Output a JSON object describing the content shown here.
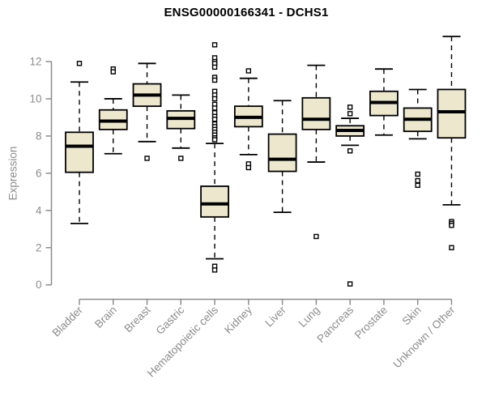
{
  "window": {
    "title": "ENSG00000166341 - DCHS1"
  },
  "colors": {
    "box_fill": "#EDE8CD",
    "box_stroke": "#000000",
    "median": "#000000",
    "outlier_fill": "#FFFFFF",
    "axis": "#8C8C8C",
    "tick_label": "#8C8C8C",
    "title": "#000000",
    "background": "#FFFFFF"
  },
  "chart_data": {
    "type": "boxplot",
    "title": "ENSG00000166341 - DCHS1",
    "xlabel": "",
    "ylabel": "Expression",
    "ylim": [
      0,
      13.5
    ],
    "yticks": [
      0,
      2,
      4,
      6,
      8,
      10,
      12
    ],
    "grid": false,
    "legend": "none",
    "categories": [
      "Bladder",
      "Brain",
      "Breast",
      "Gastric",
      "Hematopoietic cells",
      "Kidney",
      "Liver",
      "Lung",
      "Pancreas",
      "Prostate",
      "Skin",
      "Unknown / Other"
    ],
    "series": [
      {
        "name": "Bladder",
        "low": 3.3,
        "q1": 6.05,
        "median": 7.45,
        "q3": 8.2,
        "high": 10.9,
        "outliers": [
          11.9
        ]
      },
      {
        "name": "Brain",
        "low": 7.05,
        "q1": 8.35,
        "median": 8.8,
        "q3": 9.4,
        "high": 10.0,
        "outliers": [
          11.6,
          11.45
        ]
      },
      {
        "name": "Breast",
        "low": 7.7,
        "q1": 9.6,
        "median": 10.2,
        "q3": 10.8,
        "high": 11.9,
        "outliers": [
          6.8
        ]
      },
      {
        "name": "Gastric",
        "low": 7.35,
        "q1": 8.4,
        "median": 8.95,
        "q3": 9.35,
        "high": 10.2,
        "outliers": [
          6.8
        ]
      },
      {
        "name": "Hematopoietic cells",
        "low": 1.4,
        "q1": 3.65,
        "median": 4.35,
        "q3": 5.3,
        "high": 7.6,
        "outliers": [
          12.9,
          12.2,
          12.0,
          11.9,
          11.7,
          11.15,
          11.0,
          10.4,
          10.2,
          10.0,
          9.7,
          9.5,
          9.25,
          9.05,
          8.9,
          8.65,
          8.5,
          8.35,
          8.2,
          8.05,
          7.9,
          7.8,
          1.0,
          0.8
        ]
      },
      {
        "name": "Kidney",
        "low": 7.0,
        "q1": 8.5,
        "median": 9.0,
        "q3": 9.6,
        "high": 11.1,
        "outliers": [
          11.5,
          6.5,
          6.3
        ]
      },
      {
        "name": "Liver",
        "low": 3.9,
        "q1": 6.1,
        "median": 6.75,
        "q3": 8.1,
        "high": 9.9,
        "outliers": []
      },
      {
        "name": "Lung",
        "low": 6.6,
        "q1": 8.35,
        "median": 8.9,
        "q3": 10.05,
        "high": 11.8,
        "outliers": [
          2.6
        ]
      },
      {
        "name": "Pancreas",
        "low": 7.5,
        "q1": 8.0,
        "median": 8.3,
        "q3": 8.55,
        "high": 8.95,
        "outliers": [
          9.55,
          9.2,
          7.2,
          0.05
        ]
      },
      {
        "name": "Prostate",
        "low": 8.05,
        "q1": 9.1,
        "median": 9.8,
        "q3": 10.4,
        "high": 11.6,
        "outliers": []
      },
      {
        "name": "Skin",
        "low": 7.85,
        "q1": 8.25,
        "median": 8.9,
        "q3": 9.5,
        "high": 10.5,
        "outliers": [
          5.95,
          5.6,
          5.35
        ]
      },
      {
        "name": "Unknown / Other",
        "low": 4.3,
        "q1": 7.9,
        "median": 9.3,
        "q3": 10.5,
        "high": 13.35,
        "outliers": [
          3.4,
          3.3,
          3.2,
          2.0
        ]
      }
    ]
  }
}
